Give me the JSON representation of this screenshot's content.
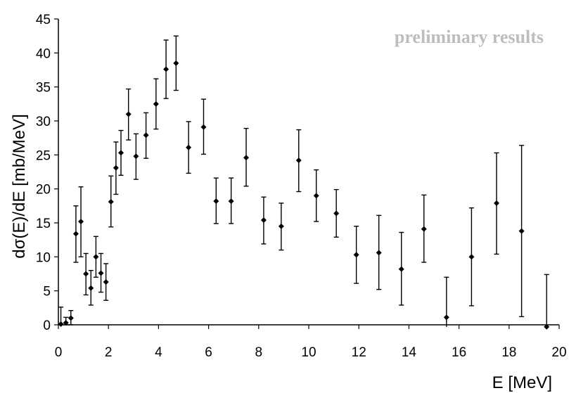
{
  "chart_data": {
    "type": "scatter",
    "title": "",
    "xlabel": "E  [MeV]",
    "ylabel": "dσ(E)/dE  [mb/MeV]",
    "annotation": "preliminary results",
    "xlim": [
      0,
      20
    ],
    "ylim": [
      0,
      45
    ],
    "xticks": [
      "0",
      "2",
      "4",
      "6",
      "8",
      "10",
      "12",
      "14",
      "16",
      "18",
      "20"
    ],
    "yticks": [
      "0",
      "5",
      "10",
      "15",
      "20",
      "25",
      "30",
      "35",
      "40",
      "45"
    ],
    "grid": false,
    "points": [
      {
        "x": 0.1,
        "y": 0.1,
        "lo": 0.0,
        "hi": 2.6
      },
      {
        "x": 0.3,
        "y": 0.3,
        "lo": 0.0,
        "hi": 1.1
      },
      {
        "x": 0.5,
        "y": 1.0,
        "lo": 0.0,
        "hi": 2.1
      },
      {
        "x": 0.7,
        "y": 13.4,
        "lo": 9.2,
        "hi": 17.5
      },
      {
        "x": 0.9,
        "y": 15.2,
        "lo": 10.0,
        "hi": 20.3
      },
      {
        "x": 1.1,
        "y": 7.5,
        "lo": 4.4,
        "hi": 10.5
      },
      {
        "x": 1.3,
        "y": 5.4,
        "lo": 2.9,
        "hi": 8.0
      },
      {
        "x": 1.5,
        "y": 10.0,
        "lo": 7.0,
        "hi": 13.0
      },
      {
        "x": 1.7,
        "y": 7.6,
        "lo": 4.8,
        "hi": 10.5
      },
      {
        "x": 1.9,
        "y": 6.3,
        "lo": 3.6,
        "hi": 9.0
      },
      {
        "x": 2.1,
        "y": 18.1,
        "lo": 14.4,
        "hi": 21.9
      },
      {
        "x": 2.3,
        "y": 23.1,
        "lo": 19.2,
        "hi": 26.9
      },
      {
        "x": 2.5,
        "y": 25.3,
        "lo": 22.0,
        "hi": 28.6
      },
      {
        "x": 2.8,
        "y": 31.0,
        "lo": 27.2,
        "hi": 34.7
      },
      {
        "x": 3.1,
        "y": 24.8,
        "lo": 21.4,
        "hi": 28.1
      },
      {
        "x": 3.5,
        "y": 27.9,
        "lo": 24.5,
        "hi": 31.2
      },
      {
        "x": 3.9,
        "y": 32.5,
        "lo": 28.8,
        "hi": 36.2
      },
      {
        "x": 4.3,
        "y": 37.6,
        "lo": 33.3,
        "hi": 41.9
      },
      {
        "x": 4.7,
        "y": 38.5,
        "lo": 34.5,
        "hi": 42.5
      },
      {
        "x": 5.2,
        "y": 26.1,
        "lo": 22.3,
        "hi": 29.9
      },
      {
        "x": 5.8,
        "y": 29.1,
        "lo": 25.1,
        "hi": 33.2
      },
      {
        "x": 6.3,
        "y": 18.2,
        "lo": 14.9,
        "hi": 21.6
      },
      {
        "x": 6.9,
        "y": 18.2,
        "lo": 14.9,
        "hi": 21.6
      },
      {
        "x": 7.5,
        "y": 24.6,
        "lo": 20.4,
        "hi": 28.9
      },
      {
        "x": 8.2,
        "y": 15.4,
        "lo": 11.9,
        "hi": 18.8
      },
      {
        "x": 8.9,
        "y": 14.5,
        "lo": 11.0,
        "hi": 17.9
      },
      {
        "x": 9.6,
        "y": 24.2,
        "lo": 19.6,
        "hi": 28.7
      },
      {
        "x": 10.3,
        "y": 19.0,
        "lo": 15.2,
        "hi": 22.8
      },
      {
        "x": 11.1,
        "y": 16.4,
        "lo": 12.9,
        "hi": 19.9
      },
      {
        "x": 11.9,
        "y": 10.3,
        "lo": 6.1,
        "hi": 14.5
      },
      {
        "x": 12.8,
        "y": 10.6,
        "lo": 5.2,
        "hi": 16.1
      },
      {
        "x": 13.7,
        "y": 8.2,
        "lo": 2.9,
        "hi": 13.6
      },
      {
        "x": 14.6,
        "y": 14.1,
        "lo": 9.2,
        "hi": 19.1
      },
      {
        "x": 15.5,
        "y": 1.1,
        "lo": -2.0,
        "hi": 7.0
      },
      {
        "x": 16.5,
        "y": 10.0,
        "lo": 2.8,
        "hi": 17.2
      },
      {
        "x": 17.5,
        "y": 17.9,
        "lo": 10.4,
        "hi": 25.3
      },
      {
        "x": 18.5,
        "y": 13.8,
        "lo": 1.2,
        "hi": 26.4
      },
      {
        "x": 19.5,
        "y": -0.3,
        "lo": -0.3,
        "hi": 7.4
      }
    ]
  }
}
